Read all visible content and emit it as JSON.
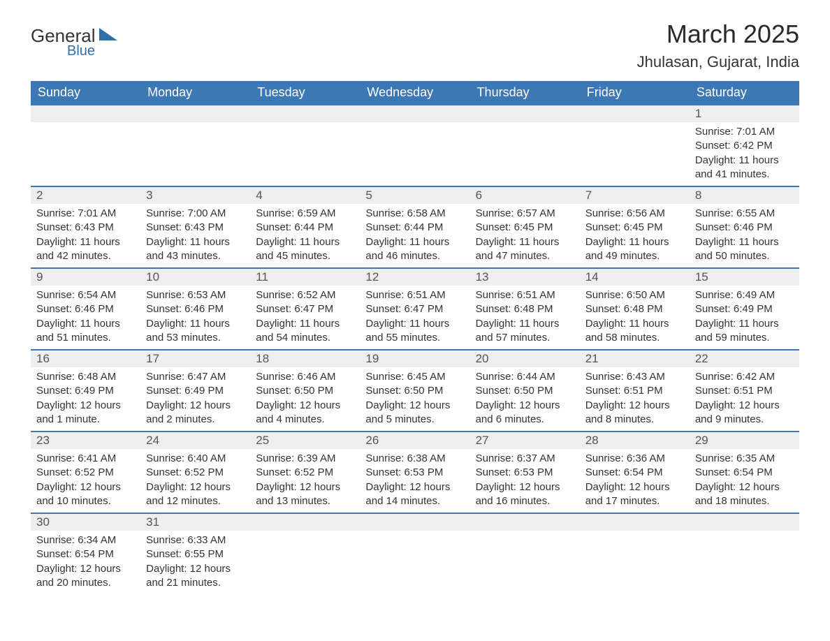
{
  "logo": {
    "text_main": "General",
    "text_sub": "Blue"
  },
  "title": "March 2025",
  "location": "Jhulasan, Gujarat, India",
  "colors": {
    "header_bg": "#3b78b5",
    "header_text": "#ffffff",
    "daynum_bg": "#eeeeee",
    "border": "#3b78b5",
    "body_text": "#333333",
    "logo_accent": "#2f6fa8"
  },
  "day_headers": [
    "Sunday",
    "Monday",
    "Tuesday",
    "Wednesday",
    "Thursday",
    "Friday",
    "Saturday"
  ],
  "weeks": [
    [
      null,
      null,
      null,
      null,
      null,
      null,
      {
        "n": "1",
        "sr": "7:01 AM",
        "ss": "6:42 PM",
        "dl": "11 hours and 41 minutes."
      }
    ],
    [
      {
        "n": "2",
        "sr": "7:01 AM",
        "ss": "6:43 PM",
        "dl": "11 hours and 42 minutes."
      },
      {
        "n": "3",
        "sr": "7:00 AM",
        "ss": "6:43 PM",
        "dl": "11 hours and 43 minutes."
      },
      {
        "n": "4",
        "sr": "6:59 AM",
        "ss": "6:44 PM",
        "dl": "11 hours and 45 minutes."
      },
      {
        "n": "5",
        "sr": "6:58 AM",
        "ss": "6:44 PM",
        "dl": "11 hours and 46 minutes."
      },
      {
        "n": "6",
        "sr": "6:57 AM",
        "ss": "6:45 PM",
        "dl": "11 hours and 47 minutes."
      },
      {
        "n": "7",
        "sr": "6:56 AM",
        "ss": "6:45 PM",
        "dl": "11 hours and 49 minutes."
      },
      {
        "n": "8",
        "sr": "6:55 AM",
        "ss": "6:46 PM",
        "dl": "11 hours and 50 minutes."
      }
    ],
    [
      {
        "n": "9",
        "sr": "6:54 AM",
        "ss": "6:46 PM",
        "dl": "11 hours and 51 minutes."
      },
      {
        "n": "10",
        "sr": "6:53 AM",
        "ss": "6:46 PM",
        "dl": "11 hours and 53 minutes."
      },
      {
        "n": "11",
        "sr": "6:52 AM",
        "ss": "6:47 PM",
        "dl": "11 hours and 54 minutes."
      },
      {
        "n": "12",
        "sr": "6:51 AM",
        "ss": "6:47 PM",
        "dl": "11 hours and 55 minutes."
      },
      {
        "n": "13",
        "sr": "6:51 AM",
        "ss": "6:48 PM",
        "dl": "11 hours and 57 minutes."
      },
      {
        "n": "14",
        "sr": "6:50 AM",
        "ss": "6:48 PM",
        "dl": "11 hours and 58 minutes."
      },
      {
        "n": "15",
        "sr": "6:49 AM",
        "ss": "6:49 PM",
        "dl": "11 hours and 59 minutes."
      }
    ],
    [
      {
        "n": "16",
        "sr": "6:48 AM",
        "ss": "6:49 PM",
        "dl": "12 hours and 1 minute."
      },
      {
        "n": "17",
        "sr": "6:47 AM",
        "ss": "6:49 PM",
        "dl": "12 hours and 2 minutes."
      },
      {
        "n": "18",
        "sr": "6:46 AM",
        "ss": "6:50 PM",
        "dl": "12 hours and 4 minutes."
      },
      {
        "n": "19",
        "sr": "6:45 AM",
        "ss": "6:50 PM",
        "dl": "12 hours and 5 minutes."
      },
      {
        "n": "20",
        "sr": "6:44 AM",
        "ss": "6:50 PM",
        "dl": "12 hours and 6 minutes."
      },
      {
        "n": "21",
        "sr": "6:43 AM",
        "ss": "6:51 PM",
        "dl": "12 hours and 8 minutes."
      },
      {
        "n": "22",
        "sr": "6:42 AM",
        "ss": "6:51 PM",
        "dl": "12 hours and 9 minutes."
      }
    ],
    [
      {
        "n": "23",
        "sr": "6:41 AM",
        "ss": "6:52 PM",
        "dl": "12 hours and 10 minutes."
      },
      {
        "n": "24",
        "sr": "6:40 AM",
        "ss": "6:52 PM",
        "dl": "12 hours and 12 minutes."
      },
      {
        "n": "25",
        "sr": "6:39 AM",
        "ss": "6:52 PM",
        "dl": "12 hours and 13 minutes."
      },
      {
        "n": "26",
        "sr": "6:38 AM",
        "ss": "6:53 PM",
        "dl": "12 hours and 14 minutes."
      },
      {
        "n": "27",
        "sr": "6:37 AM",
        "ss": "6:53 PM",
        "dl": "12 hours and 16 minutes."
      },
      {
        "n": "28",
        "sr": "6:36 AM",
        "ss": "6:54 PM",
        "dl": "12 hours and 17 minutes."
      },
      {
        "n": "29",
        "sr": "6:35 AM",
        "ss": "6:54 PM",
        "dl": "12 hours and 18 minutes."
      }
    ],
    [
      {
        "n": "30",
        "sr": "6:34 AM",
        "ss": "6:54 PM",
        "dl": "12 hours and 20 minutes."
      },
      {
        "n": "31",
        "sr": "6:33 AM",
        "ss": "6:55 PM",
        "dl": "12 hours and 21 minutes."
      },
      null,
      null,
      null,
      null,
      null
    ]
  ],
  "labels": {
    "sunrise": "Sunrise:",
    "sunset": "Sunset:",
    "daylight": "Daylight:"
  }
}
